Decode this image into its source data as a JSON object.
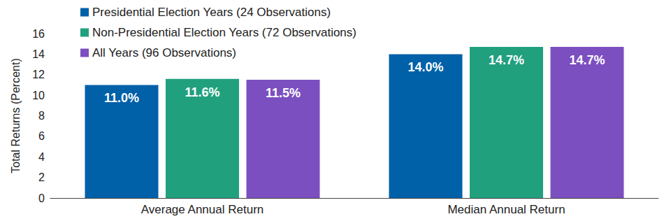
{
  "chart_data": {
    "type": "bar",
    "y_label": "Total Returns (Percent)",
    "categories": [
      "Average Annual Return",
      "Median Annual Return"
    ],
    "series": [
      {
        "name": "Presidential Election Years (24 Observations)",
        "color": "#0060a8",
        "values": [
          11.0,
          14.0
        ],
        "value_labels": [
          "11.0%",
          "14.0%"
        ]
      },
      {
        "name": "Non-Presidential Election Years (72 Observations)",
        "color": "#21a07e",
        "values": [
          11.6,
          14.7
        ],
        "value_labels": [
          "11.6%",
          "14.7%"
        ]
      },
      {
        "name": "All Years (96 Observations)",
        "color": "#7b4fc0",
        "values": [
          11.5,
          14.7
        ],
        "value_labels": [
          "11.5%",
          "14.7%"
        ]
      }
    ],
    "ylim": [
      0,
      16
    ],
    "yticks": [
      0,
      2,
      4,
      6,
      8,
      10,
      12,
      14,
      16
    ],
    "grid": false,
    "legend": "top-left",
    "data_labels": true
  }
}
